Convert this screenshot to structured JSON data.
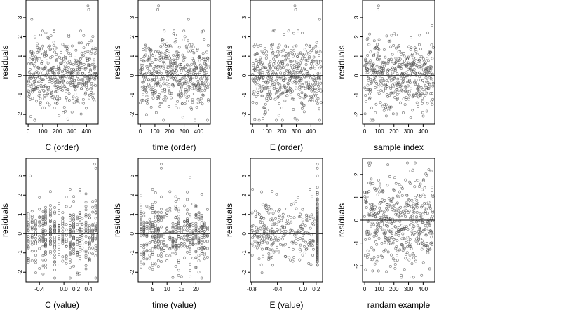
{
  "figure": {
    "colors": {
      "point": "#555555",
      "axis": "#000000",
      "background": "#ffffff"
    },
    "marker": "open-circle"
  },
  "chart_data": [
    {
      "id": "p1",
      "type": "scatter",
      "xlabel": "C (order)",
      "ylabel": "residuals",
      "xlim": [
        -15,
        480
      ],
      "ylim": [
        -2.5,
        3.9
      ],
      "xticks": [
        0,
        100,
        200,
        300,
        400
      ],
      "xtick_labels": [
        "0",
        "100",
        "200",
        "300",
        "400"
      ],
      "yticks": [
        -2,
        -1,
        0,
        1,
        2,
        3
      ],
      "ytick_labels": [
        "-2",
        "-1",
        "0",
        "1",
        "2",
        "3"
      ],
      "hline": 0,
      "points": {
        "kind": "random",
        "n": 470,
        "xmin": 0,
        "xmax": 470,
        "sd": 0.9,
        "seed": 11,
        "extra": [
          [
            410,
            3.6
          ],
          [
            415,
            3.4
          ],
          [
            25,
            2.9
          ]
        ]
      },
      "grid": false
    },
    {
      "id": "p2",
      "type": "scatter",
      "xlabel": "time (order)",
      "ylabel": "residuals",
      "xlim": [
        -15,
        480
      ],
      "ylim": [
        -2.5,
        3.9
      ],
      "xticks": [
        0,
        100,
        200,
        300,
        400
      ],
      "xtick_labels": [
        "0",
        "100",
        "200",
        "300",
        "400"
      ],
      "yticks": [
        -2,
        -1,
        0,
        1,
        2,
        3
      ],
      "ytick_labels": [
        "-2",
        "-1",
        "0",
        "1",
        "2",
        "3"
      ],
      "hline": 0,
      "points": {
        "kind": "random",
        "n": 470,
        "xmin": 0,
        "xmax": 470,
        "sd": 0.9,
        "seed": 23,
        "extra": [
          [
            125,
            3.6
          ],
          [
            120,
            3.4
          ],
          [
            330,
            2.9
          ]
        ]
      },
      "grid": false
    },
    {
      "id": "p3",
      "type": "scatter",
      "xlabel": "E (order)",
      "ylabel": "residuals",
      "xlim": [
        -15,
        480
      ],
      "ylim": [
        -2.5,
        3.9
      ],
      "xticks": [
        0,
        100,
        200,
        300,
        400
      ],
      "xtick_labels": [
        "0",
        "100",
        "200",
        "300",
        "400"
      ],
      "yticks": [
        -2,
        -1,
        0,
        1,
        2,
        3
      ],
      "ytick_labels": [
        "-2",
        "-1",
        "0",
        "1",
        "2",
        "3"
      ],
      "hline": 0,
      "points": {
        "kind": "random",
        "n": 470,
        "xmin": 0,
        "xmax": 470,
        "sd": 0.9,
        "seed": 37,
        "extra": [
          [
            290,
            3.6
          ],
          [
            295,
            3.4
          ],
          [
            460,
            2.9
          ]
        ]
      },
      "grid": false
    },
    {
      "id": "p4",
      "type": "scatter",
      "xlabel": "sample index",
      "ylabel": "residuals",
      "xlim": [
        -15,
        480
      ],
      "ylim": [
        -2.5,
        3.9
      ],
      "xticks": [
        0,
        100,
        200,
        300,
        400
      ],
      "xtick_labels": [
        "0",
        "100",
        "200",
        "300",
        "400"
      ],
      "yticks": [
        -2,
        -1,
        0,
        1,
        2,
        3
      ],
      "ytick_labels": [
        "-2",
        "-1",
        "0",
        "1",
        "2",
        "3"
      ],
      "hline": 0,
      "points": {
        "kind": "random",
        "n": 470,
        "xmin": 0,
        "xmax": 470,
        "sd": 0.9,
        "seed": 53,
        "extra": [
          [
            95,
            3.6
          ],
          [
            90,
            3.4
          ],
          [
            460,
            2.6
          ]
        ]
      },
      "grid": false
    },
    {
      "id": "p5",
      "type": "scatter",
      "xlabel": "C (value)",
      "ylabel": "residuals",
      "xlim": [
        -0.62,
        0.56
      ],
      "ylim": [
        -2.5,
        3.9
      ],
      "xticks": [
        -0.4,
        0.0,
        0.2,
        0.4
      ],
      "xtick_labels": [
        "-0.4",
        "0.0",
        "0.2",
        "0.4"
      ],
      "yticks": [
        -2,
        -1,
        0,
        1,
        2,
        3
      ],
      "ytick_labels": [
        "-2",
        "-1",
        "0",
        "1",
        "2",
        "3"
      ],
      "hline": 0,
      "points": {
        "kind": "columns",
        "columns": [
          -0.58,
          -0.52,
          -0.46,
          -0.4,
          -0.34,
          -0.3,
          -0.22,
          -0.15,
          -0.08,
          -0.02,
          0.04,
          0.1,
          0.16,
          0.22,
          0.26,
          0.3,
          0.36,
          0.42,
          0.47,
          0.52
        ],
        "per": 22,
        "sd": 0.85,
        "seed": 71,
        "extra": [
          [
            0.5,
            3.6
          ],
          [
            0.52,
            3.4
          ],
          [
            -0.55,
            3.0
          ]
        ]
      },
      "grid": false
    },
    {
      "id": "p6",
      "type": "scatter",
      "xlabel": "time (value)",
      "ylabel": "residuals",
      "xlim": [
        0,
        25
      ],
      "ylim": [
        -2.5,
        3.9
      ],
      "xticks": [
        5,
        10,
        15,
        20
      ],
      "xtick_labels": [
        "5",
        "10",
        "15",
        "20"
      ],
      "yticks": [
        -2,
        -1,
        0,
        1,
        2,
        3
      ],
      "ytick_labels": [
        "-2",
        "-1",
        "0",
        "1",
        "2",
        "3"
      ],
      "hline": 0,
      "points": {
        "kind": "columns",
        "columns": [
          1,
          2,
          3,
          4,
          5,
          6,
          7,
          8,
          9,
          10,
          11,
          12,
          13,
          14,
          15,
          16,
          17,
          18,
          19,
          20,
          21,
          22,
          23,
          24
        ],
        "per": 19,
        "sd": 0.85,
        "seed": 89,
        "extra": [
          [
            8,
            3.6
          ],
          [
            8,
            3.4
          ],
          [
            18,
            2.9
          ]
        ]
      },
      "grid": false
    },
    {
      "id": "p7",
      "type": "scatter",
      "xlabel": "E (value)",
      "ylabel": "residuals",
      "xlim": [
        -0.82,
        0.3
      ],
      "ylim": [
        -2.5,
        3.9
      ],
      "xticks": [
        -0.8,
        -0.4,
        0.0,
        0.2
      ],
      "xtick_labels": [
        "-0.8",
        "-0.4",
        "0.0",
        "0.2"
      ],
      "yticks": [
        -2,
        -1,
        0,
        1,
        2,
        3
      ],
      "ytick_labels": [
        "-2",
        "-1",
        "0",
        "1",
        "2",
        "3"
      ],
      "hline": 0,
      "points": {
        "kind": "e_value",
        "n_scatter": 260,
        "xmin": -0.8,
        "xmax": 0.18,
        "n_column": 200,
        "column_x": 0.22,
        "sd": 0.8,
        "seed": 97,
        "extra": [
          [
            0.22,
            3.6
          ],
          [
            0.22,
            3.4
          ],
          [
            0.22,
            3.0
          ]
        ]
      },
      "grid": false
    },
    {
      "id": "p8",
      "type": "scatter",
      "xlabel": "randam example",
      "ylabel": "residuals",
      "xlim": [
        -15,
        480
      ],
      "ylim": [
        -2.7,
        2.7
      ],
      "xticks": [
        0,
        100,
        200,
        300,
        400
      ],
      "xtick_labels": [
        "0",
        "100",
        "200",
        "300",
        "400"
      ],
      "yticks": [
        -2,
        -1,
        0,
        1,
        2
      ],
      "ytick_labels": [
        "-2",
        "-1",
        "0",
        "1",
        "2"
      ],
      "hline": 0,
      "points": {
        "kind": "random",
        "n": 470,
        "xmin": 0,
        "xmax": 470,
        "sd": 1.0,
        "seed": 131,
        "clip": 2.5
      },
      "grid": false
    }
  ]
}
